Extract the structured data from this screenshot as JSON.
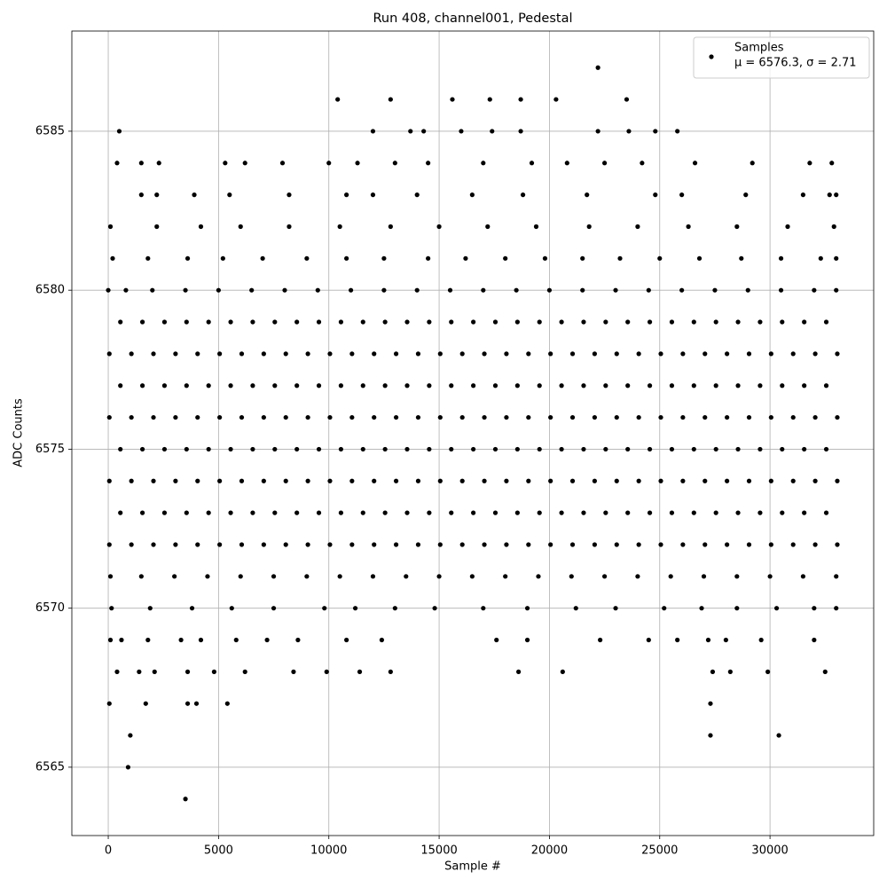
{
  "chart_data": {
    "type": "scatter",
    "title": "Run 408, channel001, Pedestal",
    "xlabel": "Sample #",
    "ylabel": "ADC Counts",
    "series_name": "Samples",
    "legend_note": "μ = 6576.3, σ = 2.71",
    "legend_loc": "upper right",
    "color": "#000000",
    "grid": true,
    "xlim": [
      -1650,
      34700
    ],
    "ylim": [
      6562.85,
      6588.15
    ],
    "xticks": [
      0,
      5000,
      10000,
      15000,
      20000,
      25000,
      30000
    ],
    "yticks": [
      6565,
      6570,
      6575,
      6580,
      6585
    ],
    "x": [
      50,
      1050,
      2050,
      3050,
      4050,
      5050,
      6050,
      7050,
      8050,
      9050,
      10050,
      11050,
      12050,
      13050,
      14050,
      15050,
      16050,
      17050,
      18050,
      19050,
      20050,
      21050,
      22050,
      23050,
      24050,
      25050,
      26050,
      27050,
      28050,
      29050,
      30050,
      31050,
      32050,
      33050,
      550,
      1550,
      2550,
      3550,
      4550,
      5550,
      6550,
      7550,
      8550,
      9550,
      10550,
      11550,
      12550,
      13550,
      14550,
      15550,
      16550,
      17550,
      18550,
      19550,
      20550,
      21550,
      22550,
      23550,
      24550,
      25550,
      26550,
      27550,
      28550,
      29550,
      30550,
      31550,
      32550,
      50,
      1050,
      2050,
      3050,
      4050,
      5050,
      6050,
      7050,
      8050,
      9050,
      10050,
      11050,
      12050,
      13050,
      14050,
      15050,
      16050,
      17050,
      18050,
      19050,
      20050,
      21050,
      22050,
      23050,
      24050,
      25050,
      26050,
      27050,
      28050,
      29050,
      30050,
      31050,
      32050,
      33050,
      550,
      1550,
      2550,
      3550,
      4550,
      5550,
      6550,
      7550,
      8550,
      9550,
      10550,
      11550,
      12550,
      13550,
      14550,
      15550,
      16550,
      17550,
      18550,
      19550,
      20550,
      21550,
      22550,
      23550,
      24550,
      25550,
      26550,
      27550,
      28550,
      29550,
      30550,
      31550,
      32550,
      50,
      1050,
      2050,
      3050,
      4050,
      5050,
      6050,
      7050,
      8050,
      9050,
      10050,
      11050,
      12050,
      13050,
      14050,
      15050,
      16050,
      17050,
      18050,
      19050,
      20050,
      21050,
      22050,
      23050,
      24050,
      25050,
      26050,
      27050,
      28050,
      29050,
      30050,
      31050,
      32050,
      33050,
      550,
      1550,
      2550,
      3550,
      4550,
      5550,
      6550,
      7550,
      8550,
      9550,
      10550,
      11550,
      12550,
      13550,
      14550,
      15550,
      16550,
      17550,
      18550,
      19550,
      20550,
      21550,
      22550,
      23550,
      24550,
      25550,
      26550,
      27550,
      28550,
      29550,
      30550,
      31550,
      32550,
      50,
      1050,
      2050,
      3050,
      4050,
      5050,
      6050,
      7050,
      8050,
      9050,
      10050,
      11050,
      12050,
      13050,
      14050,
      15050,
      16050,
      17050,
      18050,
      19050,
      20050,
      21050,
      22050,
      23050,
      24050,
      25050,
      26050,
      27050,
      28050,
      29050,
      30050,
      31050,
      32050,
      33050,
      550,
      1550,
      2550,
      3550,
      4550,
      5550,
      6550,
      7550,
      8550,
      9550,
      10550,
      11550,
      12550,
      13550,
      14550,
      15550,
      16550,
      17550,
      18550,
      19550,
      20550,
      21550,
      22550,
      23550,
      24550,
      25550,
      26550,
      27550,
      28550,
      29550,
      30550,
      31550,
      32550,
      0,
      800,
      2000,
      3500,
      5000,
      6500,
      8000,
      9500,
      11000,
      12500,
      14000,
      15500,
      17000,
      18500,
      20000,
      21500,
      23000,
      24500,
      26000,
      27500,
      29000,
      30500,
      32000,
      33000,
      100,
      1500,
      3000,
      4500,
      6000,
      7500,
      9000,
      10500,
      12000,
      13500,
      15000,
      16500,
      18000,
      19500,
      21000,
      22500,
      24000,
      25500,
      27000,
      28500,
      30000,
      31500,
      33000,
      200,
      1800,
      3600,
      5200,
      7000,
      9000,
      10800,
      12500,
      14500,
      16200,
      18000,
      19800,
      21500,
      23200,
      25000,
      26800,
      28700,
      30500,
      32300,
      33000,
      100,
      2200,
      4200,
      6000,
      8200,
      10500,
      12800,
      15000,
      17200,
      19400,
      21800,
      24000,
      26300,
      28500,
      30800,
      32900,
      150,
      1900,
      3800,
      5600,
      7500,
      9800,
      11200,
      13000,
      14800,
      17000,
      19000,
      21200,
      23000,
      25200,
      26900,
      28500,
      30300,
      32000,
      33000,
      1500,
      2200,
      3900,
      5500,
      8200,
      10800,
      12000,
      14000,
      16500,
      18800,
      21700,
      24800,
      26000,
      28900,
      31500,
      32700,
      33000,
      400,
      1500,
      2300,
      5300,
      6200,
      7900,
      10000,
      11300,
      13000,
      14500,
      17000,
      19200,
      20800,
      22500,
      24200,
      26600,
      29200,
      31800,
      32800,
      100,
      600,
      1800,
      3300,
      4200,
      5800,
      7200,
      8600,
      10800,
      12400,
      17600,
      19000,
      22300,
      24500,
      25800,
      27200,
      28000,
      29600,
      32000,
      400,
      1400,
      2100,
      3600,
      4800,
      6200,
      8400,
      9900,
      11400,
      12800,
      18600,
      20600,
      27400,
      28200,
      29900,
      32500,
      500,
      12000,
      13700,
      14300,
      16000,
      17400,
      18700,
      22200,
      23600,
      24800,
      25800,
      10400,
      12800,
      15600,
      17300,
      18700,
      20300,
      23500,
      50,
      1700,
      3600,
      4000,
      5400,
      27300,
      22200,
      1000,
      27300,
      30400,
      900,
      3500
    ],
    "values": [
      6572,
      6572,
      6572,
      6572,
      6572,
      6572,
      6572,
      6572,
      6572,
      6572,
      6572,
      6572,
      6572,
      6572,
      6572,
      6572,
      6572,
      6572,
      6572,
      6572,
      6572,
      6572,
      6572,
      6572,
      6572,
      6572,
      6572,
      6572,
      6572,
      6572,
      6572,
      6572,
      6572,
      6572,
      6573,
      6573,
      6573,
      6573,
      6573,
      6573,
      6573,
      6573,
      6573,
      6573,
      6573,
      6573,
      6573,
      6573,
      6573,
      6573,
      6573,
      6573,
      6573,
      6573,
      6573,
      6573,
      6573,
      6573,
      6573,
      6573,
      6573,
      6573,
      6573,
      6573,
      6573,
      6573,
      6573,
      6574,
      6574,
      6574,
      6574,
      6574,
      6574,
      6574,
      6574,
      6574,
      6574,
      6574,
      6574,
      6574,
      6574,
      6574,
      6574,
      6574,
      6574,
      6574,
      6574,
      6574,
      6574,
      6574,
      6574,
      6574,
      6574,
      6574,
      6574,
      6574,
      6574,
      6574,
      6574,
      6574,
      6574,
      6575,
      6575,
      6575,
      6575,
      6575,
      6575,
      6575,
      6575,
      6575,
      6575,
      6575,
      6575,
      6575,
      6575,
      6575,
      6575,
      6575,
      6575,
      6575,
      6575,
      6575,
      6575,
      6575,
      6575,
      6575,
      6575,
      6575,
      6575,
      6575,
      6575,
      6575,
      6575,
      6575,
      6576,
      6576,
      6576,
      6576,
      6576,
      6576,
      6576,
      6576,
      6576,
      6576,
      6576,
      6576,
      6576,
      6576,
      6576,
      6576,
      6576,
      6576,
      6576,
      6576,
      6576,
      6576,
      6576,
      6576,
      6576,
      6576,
      6576,
      6576,
      6576,
      6576,
      6576,
      6576,
      6576,
      6576,
      6577,
      6577,
      6577,
      6577,
      6577,
      6577,
      6577,
      6577,
      6577,
      6577,
      6577,
      6577,
      6577,
      6577,
      6577,
      6577,
      6577,
      6577,
      6577,
      6577,
      6577,
      6577,
      6577,
      6577,
      6577,
      6577,
      6577,
      6577,
      6577,
      6577,
      6577,
      6577,
      6577,
      6578,
      6578,
      6578,
      6578,
      6578,
      6578,
      6578,
      6578,
      6578,
      6578,
      6578,
      6578,
      6578,
      6578,
      6578,
      6578,
      6578,
      6578,
      6578,
      6578,
      6578,
      6578,
      6578,
      6578,
      6578,
      6578,
      6578,
      6578,
      6578,
      6578,
      6578,
      6578,
      6578,
      6578,
      6579,
      6579,
      6579,
      6579,
      6579,
      6579,
      6579,
      6579,
      6579,
      6579,
      6579,
      6579,
      6579,
      6579,
      6579,
      6579,
      6579,
      6579,
      6579,
      6579,
      6579,
      6579,
      6579,
      6579,
      6579,
      6579,
      6579,
      6579,
      6579,
      6579,
      6579,
      6579,
      6579,
      6580,
      6580,
      6580,
      6580,
      6580,
      6580,
      6580,
      6580,
      6580,
      6580,
      6580,
      6580,
      6580,
      6580,
      6580,
      6580,
      6580,
      6580,
      6580,
      6580,
      6580,
      6580,
      6580,
      6580,
      6571,
      6571,
      6571,
      6571,
      6571,
      6571,
      6571,
      6571,
      6571,
      6571,
      6571,
      6571,
      6571,
      6571,
      6571,
      6571,
      6571,
      6571,
      6571,
      6571,
      6571,
      6571,
      6571,
      6581,
      6581,
      6581,
      6581,
      6581,
      6581,
      6581,
      6581,
      6581,
      6581,
      6581,
      6581,
      6581,
      6581,
      6581,
      6581,
      6581,
      6581,
      6581,
      6581,
      6582,
      6582,
      6582,
      6582,
      6582,
      6582,
      6582,
      6582,
      6582,
      6582,
      6582,
      6582,
      6582,
      6582,
      6582,
      6582,
      6570,
      6570,
      6570,
      6570,
      6570,
      6570,
      6570,
      6570,
      6570,
      6570,
      6570,
      6570,
      6570,
      6570,
      6570,
      6570,
      6570,
      6570,
      6570,
      6583,
      6583,
      6583,
      6583,
      6583,
      6583,
      6583,
      6583,
      6583,
      6583,
      6583,
      6583,
      6583,
      6583,
      6583,
      6583,
      6583,
      6584,
      6584,
      6584,
      6584,
      6584,
      6584,
      6584,
      6584,
      6584,
      6584,
      6584,
      6584,
      6584,
      6584,
      6584,
      6584,
      6584,
      6584,
      6584,
      6569,
      6569,
      6569,
      6569,
      6569,
      6569,
      6569,
      6569,
      6569,
      6569,
      6569,
      6569,
      6569,
      6569,
      6569,
      6569,
      6569,
      6569,
      6569,
      6568,
      6568,
      6568,
      6568,
      6568,
      6568,
      6568,
      6568,
      6568,
      6568,
      6568,
      6568,
      6568,
      6568,
      6568,
      6568,
      6585,
      6585,
      6585,
      6585,
      6585,
      6585,
      6585,
      6585,
      6585,
      6585,
      6585,
      6586,
      6586,
      6586,
      6586,
      6586,
      6586,
      6586,
      6567,
      6567,
      6567,
      6567,
      6567,
      6567,
      6587,
      6566,
      6566,
      6566,
      6565,
      6564
    ]
  }
}
